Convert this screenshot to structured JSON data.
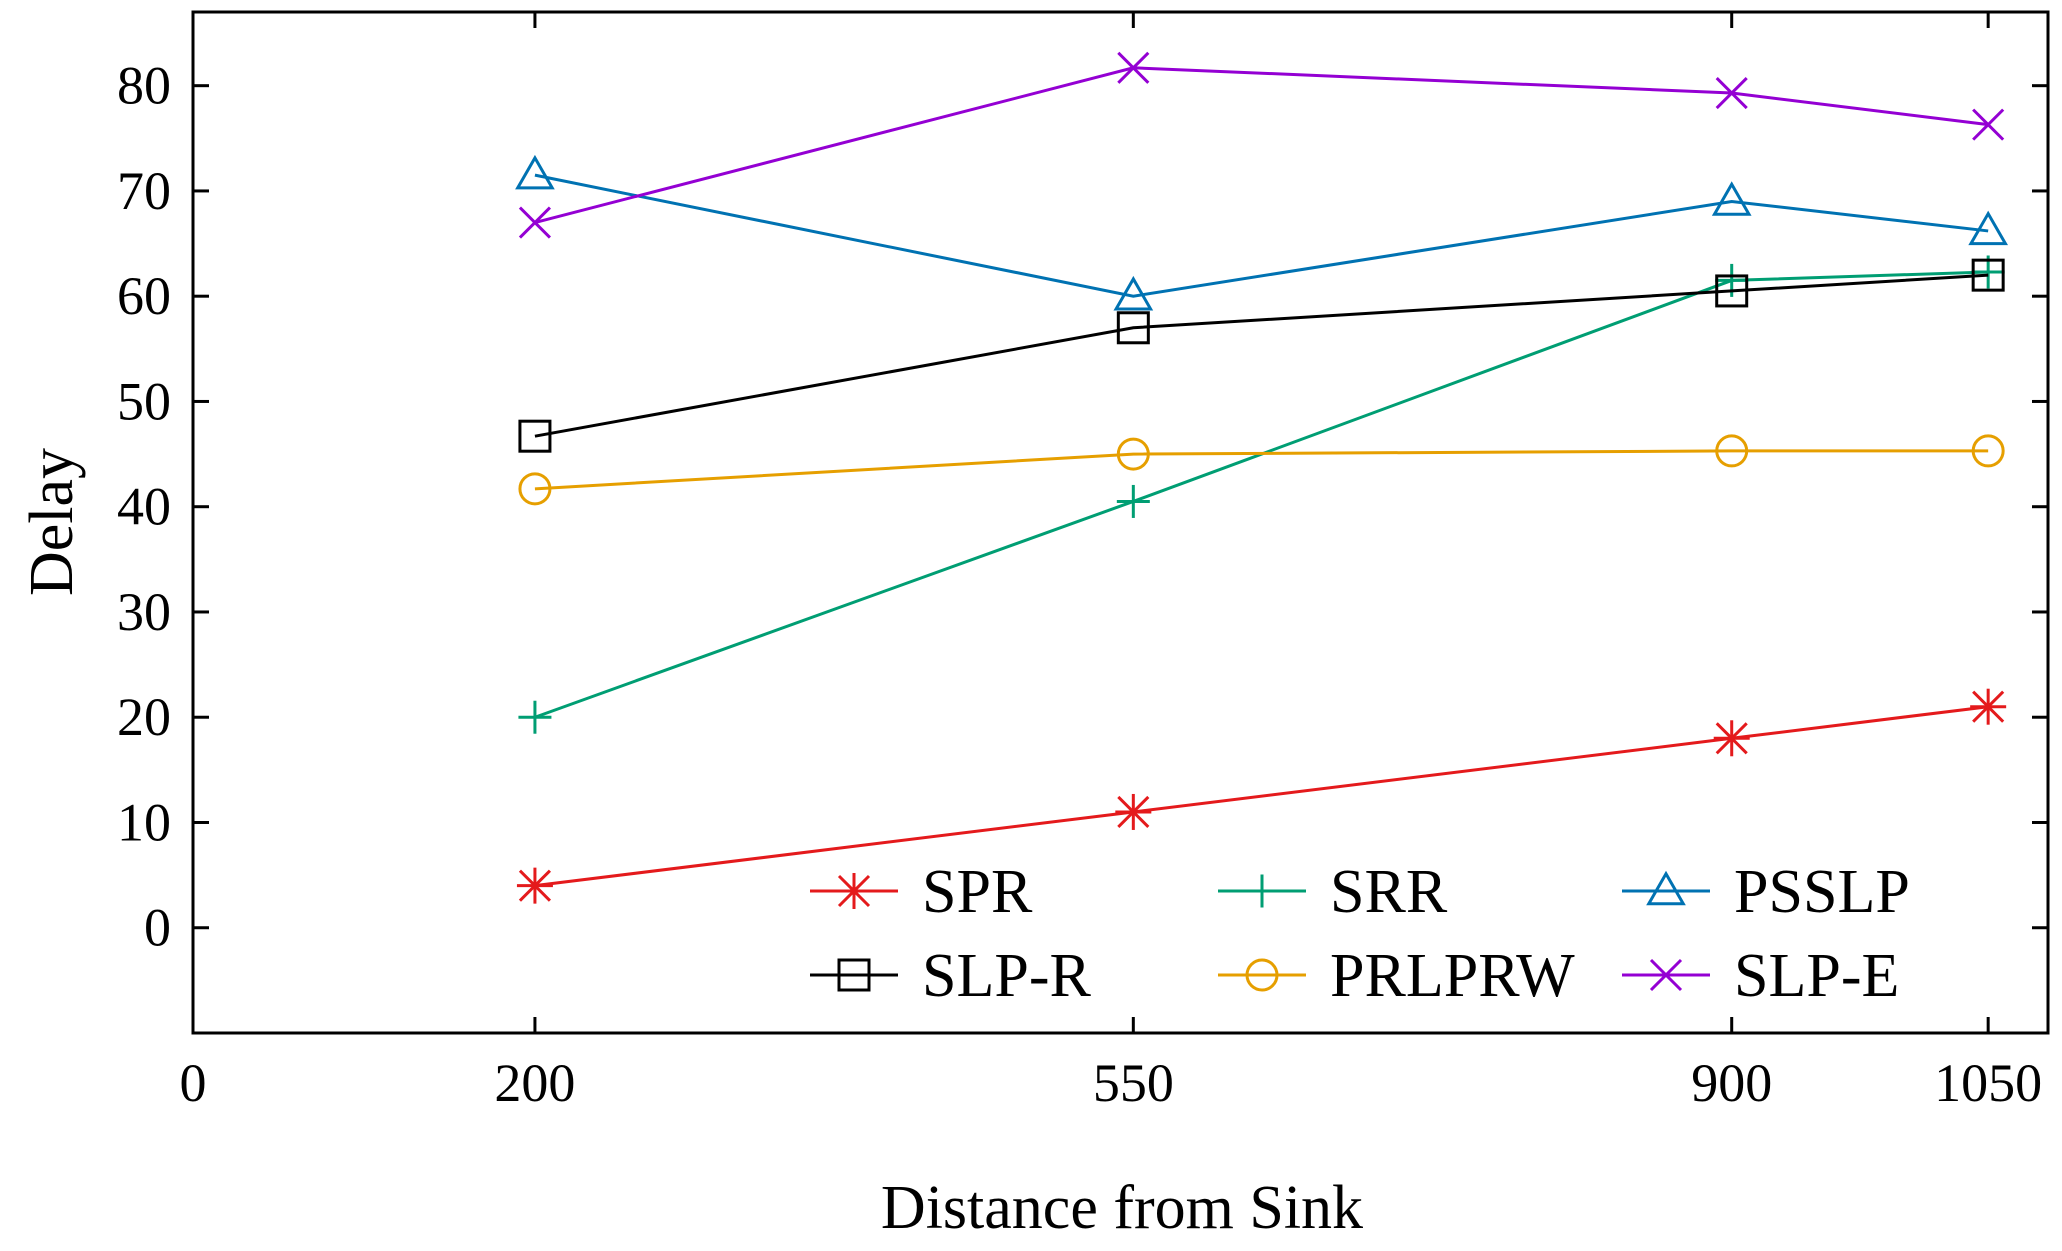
{
  "chart_data": {
    "type": "line",
    "title": "",
    "xlabel": "Distance from Sink",
    "ylabel": "Delay",
    "xlim": [
      0,
      1085
    ],
    "ylim": [
      -10,
      87
    ],
    "xticks": [
      0,
      200,
      550,
      900,
      1050
    ],
    "yticks": [
      0,
      10,
      20,
      30,
      40,
      50,
      60,
      70,
      80
    ],
    "x": [
      200,
      550,
      900,
      1050
    ],
    "legend_position": "bottom-right",
    "series": [
      {
        "name": "SPR",
        "color": "#e41a1c",
        "marker": "asterisk",
        "values": [
          4,
          11,
          18,
          21
        ]
      },
      {
        "name": "SRR",
        "color": "#009e73",
        "marker": "plus",
        "values": [
          20,
          40.5,
          61.5,
          62.3
        ]
      },
      {
        "name": "PSSLP",
        "color": "#0072b2",
        "marker": "triangle",
        "values": [
          71.5,
          60,
          69,
          66.2
        ]
      },
      {
        "name": "SLP-R",
        "color": "#000000",
        "marker": "square",
        "values": [
          46.7,
          57,
          60.5,
          62
        ]
      },
      {
        "name": "PRLPRW",
        "color": "#e69f00",
        "marker": "circle",
        "values": [
          41.7,
          45,
          45.3,
          45.3
        ]
      },
      {
        "name": "SLP-E",
        "color": "#9400d3",
        "marker": "x",
        "values": [
          67,
          81.7,
          79.3,
          76.3
        ]
      }
    ]
  }
}
